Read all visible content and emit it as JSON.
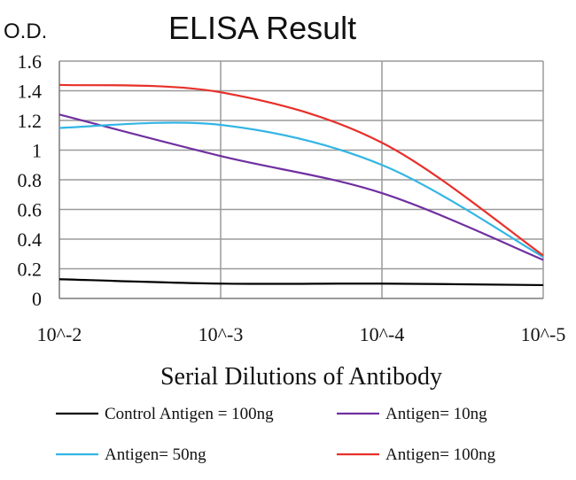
{
  "chart_data": {
    "type": "line",
    "title": "ELISA Result",
    "ylabel": "O.D.",
    "xlabel": "Serial Dilutions of Antibody",
    "categories": [
      "10^-2",
      "10^-3",
      "10^-4",
      "10^-5"
    ],
    "y_ticks": [
      "0",
      "0.2",
      "0.4",
      "0.6",
      "0.8",
      "1",
      "1.2",
      "1.4",
      "1.6"
    ],
    "ylim": [
      0,
      1.6
    ],
    "grid": true,
    "legend_position": "bottom",
    "series": [
      {
        "name": "Control Antigen = 100ng",
        "color": "#000000",
        "values": [
          0.13,
          0.1,
          0.1,
          0.09
        ]
      },
      {
        "name": "Antigen= 10ng",
        "color": "#7030a0",
        "values": [
          1.24,
          0.96,
          0.71,
          0.26
        ]
      },
      {
        "name": "Antigen= 50ng",
        "color": "#33b5e5",
        "values": [
          1.15,
          1.17,
          0.9,
          0.28
        ]
      },
      {
        "name": "Antigen= 100ng",
        "color": "#e8302a",
        "values": [
          1.44,
          1.39,
          1.05,
          0.29
        ]
      }
    ]
  }
}
